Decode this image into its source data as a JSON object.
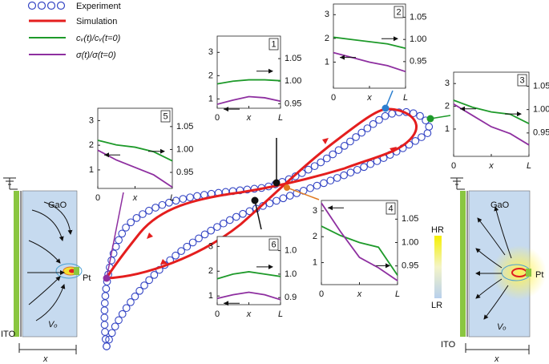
{
  "legend": {
    "experiment": "Experiment",
    "simulation": "Simulation",
    "cv": "cᵥ(t)/cᵥ(t=0)",
    "sigma": "σ(t)/σ(t=0)"
  },
  "devices": [
    {
      "material": "GaO",
      "electrode": "Pt",
      "vacancy": "Vₒ",
      "bottom": "ITO",
      "axis": "x"
    },
    {
      "material": "GaO",
      "electrode": "Pt",
      "vacancy": "Vₒ",
      "bottom": "ITO",
      "axis": "x"
    }
  ],
  "colorbar": {
    "high": "HR",
    "low": "LR"
  },
  "chart_data": [
    {
      "type": "line",
      "panel": "1",
      "x": [
        0,
        0.25,
        0.5,
        0.75,
        1
      ],
      "xlim": [
        0,
        1
      ],
      "xticks": [
        {
          "value": 0,
          "label": "0"
        },
        {
          "value": 0.5,
          "label": "x"
        },
        {
          "value": 1,
          "label": "L"
        }
      ],
      "ylim": [
        0.6,
        3.7
      ],
      "yticks": [
        1,
        2,
        3
      ],
      "y2lim": [
        0.94,
        1.1
      ],
      "y2ticks": [
        {
          "value": 0.95,
          "label": "0.95"
        },
        {
          "value": 1,
          "label": "1.00"
        },
        {
          "value": 1.05,
          "label": "1.05"
        }
      ],
      "series": [
        {
          "color": "#1e9a2a",
          "axis": "y2",
          "values": [
            0.994,
            1.0,
            1.003,
            1.003,
            1.001
          ]
        },
        {
          "color": "#8e2fa0",
          "values": [
            0.77,
            0.95,
            1.1,
            1.05,
            0.9
          ]
        }
      ]
    },
    {
      "type": "line",
      "panel": "2",
      "x": [
        0,
        0.25,
        0.5,
        0.75,
        1
      ],
      "xlim": [
        0,
        1
      ],
      "xticks": [
        {
          "value": 0,
          "label": "0"
        },
        {
          "value": 0.5,
          "label": "x"
        },
        {
          "value": 1,
          "label": "L"
        }
      ],
      "ylim": [
        -0.1,
        3.45
      ],
      "yticks": [
        1,
        2,
        3
      ],
      "y2lim": [
        0.89,
        1.08
      ],
      "y2ticks": [
        {
          "value": 0.95,
          "label": "0.95"
        },
        {
          "value": 1,
          "label": "1.00"
        },
        {
          "value": 1.05,
          "label": "1.05"
        }
      ],
      "series": [
        {
          "color": "#1e9a2a",
          "axis": "y2",
          "values": [
            1.005,
            1.0,
            0.995,
            0.99,
            0.98
          ]
        },
        {
          "color": "#8e2fa0",
          "values": [
            1.4,
            1.2,
            1.0,
            0.85,
            0.6
          ]
        }
      ]
    },
    {
      "type": "line",
      "panel": "3",
      "x": [
        0,
        0.25,
        0.5,
        0.75,
        1
      ],
      "xlim": [
        0,
        1
      ],
      "xticks": [
        {
          "value": 0,
          "label": "0"
        },
        {
          "value": 0.5,
          "label": "x"
        },
        {
          "value": 1,
          "label": "L"
        }
      ],
      "ylim": [
        -0.2,
        3.5
      ],
      "yticks": [
        1,
        2,
        3
      ],
      "y2lim": [
        0.9,
        1.08
      ],
      "y2ticks": [
        {
          "value": 0.95,
          "label": "0.95"
        },
        {
          "value": 1,
          "label": "1.00"
        },
        {
          "value": 1.05,
          "label": "1.05"
        }
      ],
      "series": [
        {
          "color": "#1e9a2a",
          "axis": "y2",
          "values": [
            1.02,
            1.005,
            0.995,
            0.99,
            0.97
          ]
        },
        {
          "color": "#8e2fa0",
          "values": [
            2.1,
            1.6,
            1.1,
            0.8,
            0.3
          ]
        }
      ]
    },
    {
      "type": "line",
      "panel": "4",
      "x": [
        0,
        0.25,
        0.5,
        0.75,
        1
      ],
      "xlim": [
        0,
        1
      ],
      "xticks": [
        {
          "value": 0,
          "label": "0"
        },
        {
          "value": 0.5,
          "label": "x"
        },
        {
          "value": 1,
          "label": "L"
        }
      ],
      "ylim": [
        0.15,
        3.4
      ],
      "yticks": [
        1,
        2,
        3
      ],
      "y2lim": [
        0.91,
        1.09
      ],
      "y2ticks": [
        {
          "value": 0.95,
          "label": "0.95"
        },
        {
          "value": 1,
          "label": "1.00"
        },
        {
          "value": 1.05,
          "label": "1.05"
        }
      ],
      "series": [
        {
          "color": "#1e9a2a",
          "axis": "y2",
          "values": [
            1.035,
            1.015,
            1.0,
            0.99,
            0.93
          ]
        },
        {
          "color": "#8e2fa0",
          "values": [
            3.3,
            2.2,
            1.2,
            0.8,
            0.3
          ]
        }
      ]
    },
    {
      "type": "line",
      "panel": "5",
      "x": [
        0,
        0.25,
        0.5,
        0.75,
        1
      ],
      "xlim": [
        0,
        1
      ],
      "xticks": [
        {
          "value": 0,
          "label": "0"
        },
        {
          "value": 0.5,
          "label": "x"
        },
        {
          "value": 1,
          "label": "L"
        }
      ],
      "ylim": [
        0.25,
        3.5
      ],
      "yticks": [
        1,
        2,
        3
      ],
      "y2lim": [
        0.915,
        1.09
      ],
      "y2ticks": [
        {
          "value": 0.95,
          "label": "0.95"
        },
        {
          "value": 1,
          "label": "1.00"
        },
        {
          "value": 1.05,
          "label": "1.05"
        }
      ],
      "series": [
        {
          "color": "#1e9a2a",
          "axis": "y2",
          "values": [
            1.02,
            1.01,
            1.005,
            0.995,
            0.975
          ]
        },
        {
          "color": "#8e2fa0",
          "values": [
            1.8,
            1.4,
            1.1,
            0.8,
            0.3
          ]
        }
      ]
    },
    {
      "type": "line",
      "panel": "6",
      "x": [
        0,
        0.25,
        0.5,
        0.75,
        1
      ],
      "xlim": [
        0,
        1
      ],
      "xticks": [
        {
          "value": 0,
          "label": "0"
        },
        {
          "value": 0.5,
          "label": "x"
        },
        {
          "value": 1,
          "label": "L"
        }
      ],
      "ylim": [
        0.65,
        3.4
      ],
      "yticks": [
        1,
        2,
        3
      ],
      "y2lim": [
        0.935,
        1.08
      ],
      "y2ticks": [
        {
          "value": 0.95,
          "label": "0.9"
        },
        {
          "value": 1,
          "label": "1.0"
        },
        {
          "value": 1.05,
          "label": "1.0"
        }
      ],
      "series": [
        {
          "color": "#1e9a2a",
          "axis": "y2",
          "values": [
            0.99,
            1.0,
            1.005,
            1.0,
            0.995
          ]
        },
        {
          "color": "#8e2fa0",
          "values": [
            0.9,
            1.05,
            1.15,
            1.05,
            0.85
          ]
        }
      ]
    }
  ]
}
